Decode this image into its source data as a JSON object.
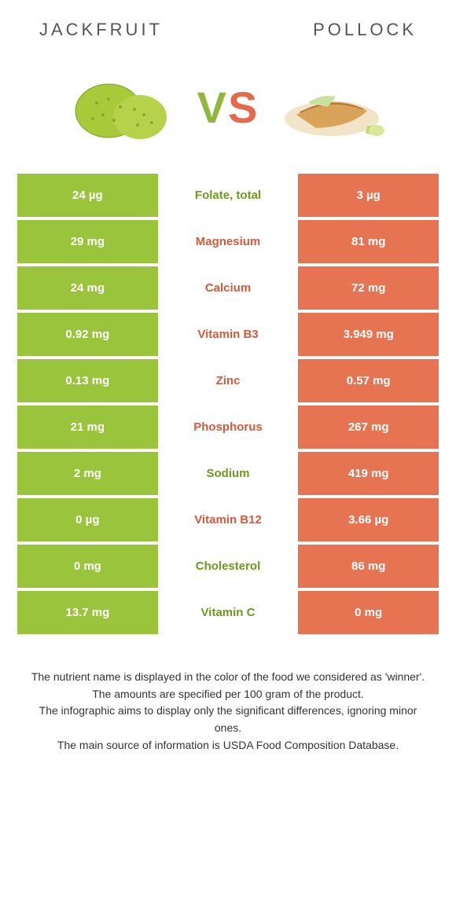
{
  "header": {
    "left": "Jackfruit",
    "right": "Pollock"
  },
  "vs": {
    "v": "V",
    "s": "S"
  },
  "colors": {
    "left_bg": "#9ac43c",
    "right_bg": "#e67452",
    "left_text": "#6d9a1e",
    "right_text": "#d35a3a"
  },
  "rows": [
    {
      "label": "Folate, total",
      "left": "24 µg",
      "right": "3 µg",
      "winner": "left"
    },
    {
      "label": "Magnesium",
      "left": "29 mg",
      "right": "81 mg",
      "winner": "right"
    },
    {
      "label": "Calcium",
      "left": "24 mg",
      "right": "72 mg",
      "winner": "right"
    },
    {
      "label": "Vitamin B3",
      "left": "0.92 mg",
      "right": "3.949 mg",
      "winner": "right"
    },
    {
      "label": "Zinc",
      "left": "0.13 mg",
      "right": "0.57 mg",
      "winner": "right"
    },
    {
      "label": "Phosphorus",
      "left": "21 mg",
      "right": "267 mg",
      "winner": "right"
    },
    {
      "label": "Sodium",
      "left": "2 mg",
      "right": "419 mg",
      "winner": "left"
    },
    {
      "label": "Vitamin B12",
      "left": "0 µg",
      "right": "3.66 µg",
      "winner": "right"
    },
    {
      "label": "Cholesterol",
      "left": "0 mg",
      "right": "86 mg",
      "winner": "left"
    },
    {
      "label": "Vitamin C",
      "left": "13.7 mg",
      "right": "0 mg",
      "winner": "left"
    }
  ],
  "footnotes": [
    "The nutrient name is displayed in the color of the food we considered as 'winner'.",
    "The amounts are specified per 100 gram of the product.",
    "The infographic aims to display only the significant differences, ignoring minor ones.",
    "The main source of information is USDA Food Composition Database."
  ]
}
